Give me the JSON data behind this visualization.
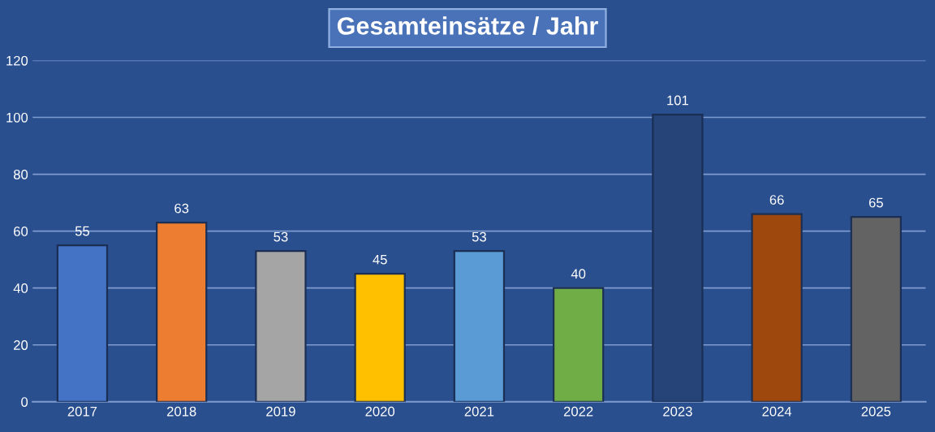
{
  "chart_data": {
    "type": "bar",
    "title": "Gesamteinsätze / Jahr",
    "categories": [
      "2017",
      "2018",
      "2019",
      "2020",
      "2021",
      "2022",
      "2023",
      "2024",
      "2025"
    ],
    "values": [
      55,
      63,
      53,
      45,
      53,
      40,
      101,
      66,
      65
    ],
    "colors": [
      "#4472c4",
      "#ed7d31",
      "#a5a5a5",
      "#ffc000",
      "#5b9bd5",
      "#70ad47",
      "#264478",
      "#9e480e",
      "#636363"
    ],
    "ylim": [
      0,
      120
    ],
    "yticks": [
      0,
      20,
      40,
      60,
      80,
      100,
      120
    ],
    "grid": "y",
    "data_labels": true
  }
}
